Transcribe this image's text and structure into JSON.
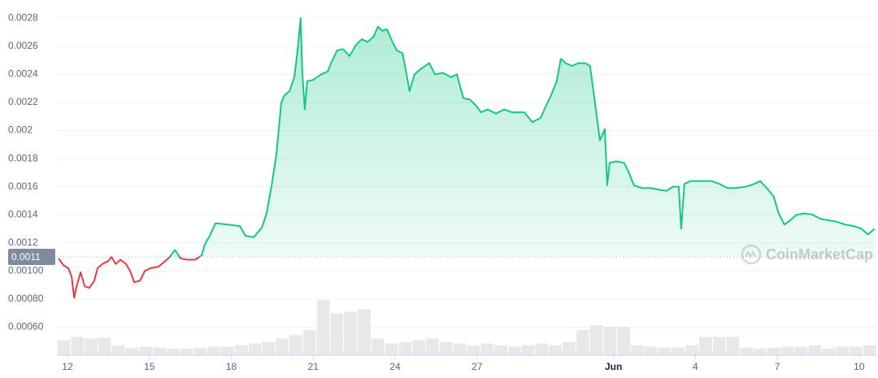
{
  "chart_data": {
    "type": "line",
    "x": [
      11.67,
      11.85,
      12.03,
      12.15,
      12.24,
      12.33,
      12.48,
      12.63,
      12.8,
      12.98,
      13.1,
      13.28,
      13.49,
      13.61,
      13.76,
      13.94,
      14.14,
      14.29,
      14.44,
      14.65,
      14.83,
      15.04,
      15.33,
      15.57,
      15.75,
      15.93,
      16.14,
      16.38,
      16.67,
      16.91,
      17.03,
      17.21,
      17.42,
      17.86,
      18.31,
      18.52,
      18.82,
      19.12,
      19.29,
      19.47,
      19.65,
      19.83,
      19.95,
      20.13,
      20.31,
      20.43,
      20.54,
      20.6,
      20.69,
      20.78,
      20.99,
      21.29,
      21.53,
      21.68,
      21.88,
      22.09,
      22.33,
      22.57,
      22.78,
      22.99,
      23.22,
      23.37,
      23.52,
      23.7,
      23.88,
      24.06,
      24.27,
      24.41,
      24.53,
      24.71,
      24.95,
      25.25,
      25.46,
      25.75,
      26.05,
      26.26,
      26.5,
      26.74,
      26.95,
      27.15,
      27.39,
      27.69,
      27.99,
      28.28,
      28.73,
      29.03,
      29.33,
      29.54,
      29.71,
      29.92,
      30.07,
      30.25,
      30.46,
      30.73,
      30.96,
      31.14,
      31.32,
      31.5,
      31.68,
      31.77,
      31.86,
      32.1,
      32.39,
      32.54,
      32.75,
      33.05,
      33.35,
      33.64,
      33.94,
      34.18,
      34.39,
      34.48,
      34.6,
      34.83,
      35.19,
      35.58,
      35.88,
      36.17,
      36.47,
      36.86,
      37.16,
      37.37,
      37.66,
      37.87,
      38.05,
      38.26,
      38.47,
      38.7,
      39.0,
      39.3,
      39.6,
      39.89,
      40.19,
      40.49,
      40.79,
      41.09,
      41.32,
      41.56
    ],
    "series": [
      {
        "color": "#16c784",
        "below_color": "#ea3943",
        "values": [
          0.00109,
          0.00104,
          0.00102,
          0.00096,
          0.00081,
          0.00089,
          0.00099,
          0.00089,
          0.00088,
          0.00093,
          0.00102,
          0.00105,
          0.00107,
          0.0011,
          0.00105,
          0.00108,
          0.00105,
          0.001,
          0.00092,
          0.00093,
          0.001,
          0.00102,
          0.00103,
          0.00107,
          0.0011,
          0.00115,
          0.00109,
          0.00108,
          0.00108,
          0.00111,
          0.00119,
          0.00125,
          0.00134,
          0.00133,
          0.00132,
          0.00125,
          0.00124,
          0.00131,
          0.00141,
          0.0016,
          0.00183,
          0.0022,
          0.00225,
          0.00228,
          0.00238,
          0.00258,
          0.0028,
          0.00241,
          0.00215,
          0.00235,
          0.00236,
          0.0024,
          0.00242,
          0.00249,
          0.00257,
          0.00258,
          0.00253,
          0.00261,
          0.00265,
          0.00263,
          0.00267,
          0.00274,
          0.00271,
          0.00272,
          0.00264,
          0.00257,
          0.00255,
          0.00241,
          0.00228,
          0.0024,
          0.00244,
          0.00248,
          0.0024,
          0.00241,
          0.00238,
          0.0024,
          0.00223,
          0.00222,
          0.00218,
          0.00213,
          0.00215,
          0.00212,
          0.00215,
          0.00213,
          0.00213,
          0.00206,
          0.00209,
          0.00218,
          0.00225,
          0.00235,
          0.00251,
          0.00248,
          0.00246,
          0.00248,
          0.00248,
          0.00246,
          0.0022,
          0.00193,
          0.00201,
          0.00161,
          0.00177,
          0.00178,
          0.00177,
          0.00171,
          0.00161,
          0.00159,
          0.00159,
          0.00158,
          0.00157,
          0.0016,
          0.0016,
          0.0013,
          0.00162,
          0.00164,
          0.00164,
          0.00164,
          0.00162,
          0.00159,
          0.00159,
          0.0016,
          0.00162,
          0.00164,
          0.00158,
          0.00153,
          0.00141,
          0.00133,
          0.00136,
          0.0014,
          0.00141,
          0.0014,
          0.00137,
          0.00136,
          0.00135,
          0.00133,
          0.00132,
          0.0013,
          0.00126,
          0.0013
        ]
      }
    ],
    "volume": {
      "color": "#e6e8ec",
      "values": [
        18,
        22,
        20,
        21,
        12,
        9,
        10,
        9,
        8,
        8,
        9,
        10,
        10,
        12,
        14,
        16,
        20,
        24,
        30,
        66,
        50,
        52,
        55,
        20,
        14,
        16,
        18,
        20,
        16,
        14,
        12,
        14,
        12,
        10,
        12,
        14,
        12,
        16,
        30,
        36,
        34,
        34,
        12,
        10,
        9,
        9,
        12,
        22,
        22,
        22,
        9,
        8,
        9,
        10,
        10,
        12,
        8,
        10,
        10,
        12
      ]
    },
    "current_price": 0.0011,
    "xlim": [
      11.61,
      41.63
    ],
    "xticks": [
      12,
      15,
      18,
      21,
      24,
      27,
      {
        "value": 32,
        "label": "Jun"
      },
      {
        "value": 35,
        "label": "4"
      },
      {
        "value": 38,
        "label": "7"
      },
      {
        "value": 41,
        "label": "10"
      }
    ],
    "ylim": [
      0.0004,
      0.0029
    ],
    "yticks": [
      {
        "value": 0.0006,
        "label": "0.00060"
      },
      {
        "value": 0.0008,
        "label": "0.00080"
      },
      {
        "value": 0.001,
        "label": "0.00100"
      },
      0.0012,
      0.0014,
      0.0016,
      0.0018,
      0.002,
      0.0022,
      0.0024,
      0.0026,
      0.0028
    ],
    "grid": true,
    "watermark": "CoinMarketCap"
  }
}
